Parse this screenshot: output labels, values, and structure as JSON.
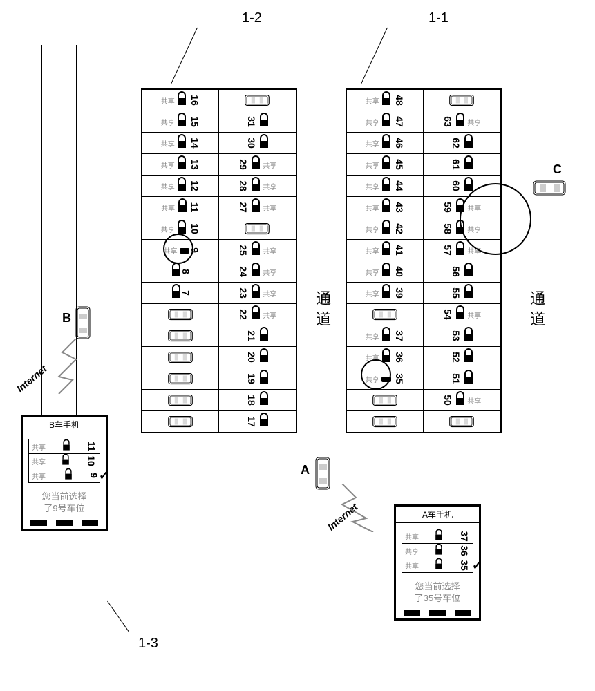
{
  "labels": {
    "l12": "1-2",
    "l11": "1-1",
    "l13": "1-3",
    "aisle": "通道",
    "carA": "A",
    "carB": "B",
    "carC": "C",
    "internet": "Internet",
    "share": "共享",
    "phoneA_title": "A车手机",
    "phoneB_title": "B车手机",
    "phoneA_msg1": "您当前选择",
    "phoneA_msg2": "了35号车位",
    "phoneB_msg1": "您当前选择",
    "phoneB_msg2": "了9号车位"
  },
  "block1": {
    "left_start": 48,
    "right_start": 63,
    "rows": [
      {
        "l": 48,
        "r": null,
        "r_car": true,
        "l_share": true
      },
      {
        "l": 47,
        "r": 63,
        "l_share": true,
        "r_share": true
      },
      {
        "l": 46,
        "r": 62,
        "l_share": true
      },
      {
        "l": 45,
        "r": 61,
        "l_share": true
      },
      {
        "l": 44,
        "r": 60,
        "l_share": true
      },
      {
        "l": 43,
        "r": 59,
        "l_share": true,
        "r_share": true
      },
      {
        "l": 42,
        "r": 58,
        "l_share": true,
        "r_share": true
      },
      {
        "l": 41,
        "r": 57,
        "l_share": true,
        "r_share": true
      },
      {
        "l": 40,
        "r": 56,
        "l_share": true
      },
      {
        "l": 39,
        "r": 55,
        "l_share": true
      },
      {
        "l": null,
        "l_car": true,
        "r": 54,
        "r_share": true
      },
      {
        "l": 37,
        "r": 53,
        "l_share": true
      },
      {
        "l": 36,
        "r": 52,
        "l_share": true
      },
      {
        "l": 35,
        "r": 51,
        "l_share": true,
        "l_flat": true
      },
      {
        "l": null,
        "l_car": true,
        "r": 50,
        "r_share": true
      },
      {
        "l": null,
        "l_car": true,
        "r": null,
        "r_car": true
      }
    ]
  },
  "block2": {
    "rows": [
      {
        "l": 16,
        "r": null,
        "r_car": true,
        "l_share": true
      },
      {
        "l": 15,
        "r": 31,
        "l_share": true
      },
      {
        "l": 14,
        "r": 30,
        "l_share": true
      },
      {
        "l": 13,
        "r": 29,
        "l_share": true,
        "r_share": true
      },
      {
        "l": 12,
        "r": 28,
        "l_share": true,
        "r_share": true
      },
      {
        "l": 11,
        "r": 27,
        "l_share": true,
        "r_share": true
      },
      {
        "l": 10,
        "r": null,
        "r_car": true,
        "l_share": true
      },
      {
        "l": 9,
        "r": 25,
        "l_share": true,
        "r_share": true,
        "l_flat": true
      },
      {
        "l": 8,
        "r": 24,
        "r_share": true
      },
      {
        "l": 7,
        "r": 23,
        "r_share": true
      },
      {
        "l": null,
        "l_car": true,
        "r": 22,
        "r_share": true
      },
      {
        "l": null,
        "l_car": true,
        "r": 21
      },
      {
        "l": null,
        "l_car": true,
        "r": 20
      },
      {
        "l": null,
        "l_car": true,
        "r": 19
      },
      {
        "l": null,
        "l_car": true,
        "r": 18
      },
      {
        "l": null,
        "l_car": true,
        "r": 17
      }
    ]
  },
  "phoneA_items": [
    37,
    36,
    35
  ],
  "phoneB_items": [
    11,
    10,
    9
  ]
}
